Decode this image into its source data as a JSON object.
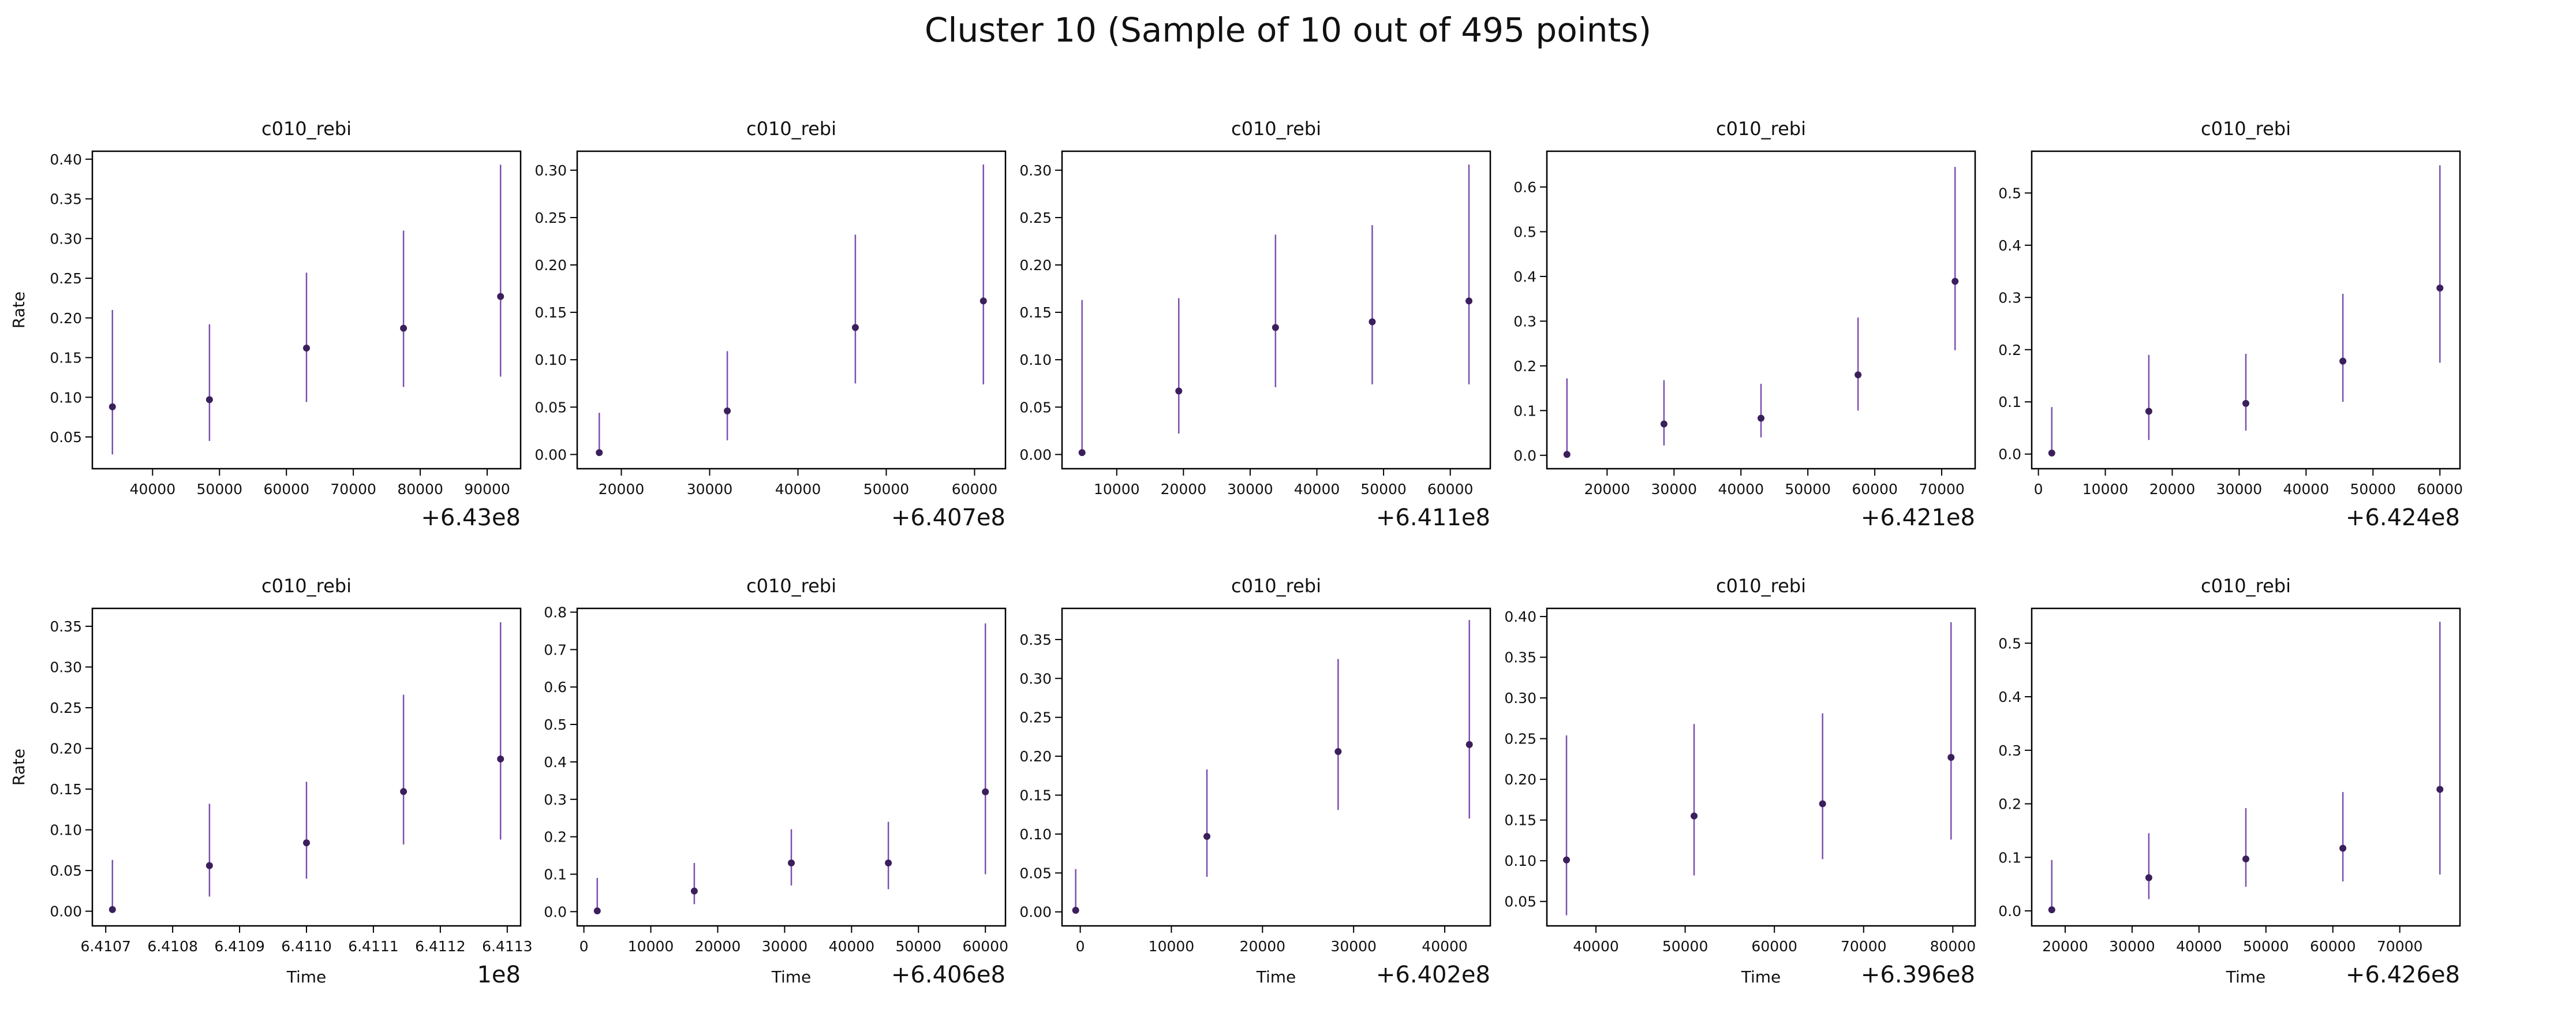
{
  "figure": {
    "title": "Cluster 10 (Sample of 10 out of 495 points)",
    "colors": {
      "marker": "#3b1f5c",
      "errorbar": "#7b4fb0",
      "axes": "#000000"
    }
  },
  "chart_data": [
    {
      "type": "scatter",
      "title": "c010_rebi",
      "ylabel": "Rate",
      "xlabel": "",
      "x_offset_label": "+6.43e8",
      "xlim": [
        31000,
        95000
      ],
      "ylim": [
        0.01,
        0.41
      ],
      "xticks": [
        40000,
        50000,
        60000,
        70000,
        80000,
        90000
      ],
      "xtick_labels": [
        "40000",
        "50000",
        "60000",
        "70000",
        "80000",
        "90000"
      ],
      "yticks": [
        0.05,
        0.1,
        0.15,
        0.2,
        0.25,
        0.3,
        0.35,
        0.4
      ],
      "ytick_labels": [
        "0.05",
        "0.10",
        "0.15",
        "0.20",
        "0.25",
        "0.30",
        "0.35",
        "0.40"
      ],
      "points": [
        {
          "x": 34000,
          "y": 0.088,
          "lo": 0.028,
          "hi": 0.21
        },
        {
          "x": 48500,
          "y": 0.097,
          "lo": 0.045,
          "hi": 0.192
        },
        {
          "x": 63000,
          "y": 0.162,
          "lo": 0.094,
          "hi": 0.257
        },
        {
          "x": 77500,
          "y": 0.187,
          "lo": 0.113,
          "hi": 0.31
        },
        {
          "x": 92000,
          "y": 0.227,
          "lo": 0.126,
          "hi": 0.393
        }
      ]
    },
    {
      "type": "scatter",
      "title": "c010_rebi",
      "ylabel": "",
      "xlabel": "",
      "x_offset_label": "+6.407e8",
      "xlim": [
        15000,
        63500
      ],
      "ylim": [
        -0.015,
        0.32
      ],
      "xticks": [
        20000,
        30000,
        40000,
        50000,
        60000
      ],
      "xtick_labels": [
        "20000",
        "30000",
        "40000",
        "50000",
        "60000"
      ],
      "yticks": [
        0,
        0.05,
        0.1,
        0.15,
        0.2,
        0.25,
        0.3
      ],
      "ytick_labels": [
        "0.00",
        "0.05",
        "0.10",
        "0.15",
        "0.20",
        "0.25",
        "0.30"
      ],
      "points": [
        {
          "x": 17500,
          "y": 0.002,
          "lo": 0.0,
          "hi": 0.044
        },
        {
          "x": 32000,
          "y": 0.046,
          "lo": 0.015,
          "hi": 0.109
        },
        {
          "x": 46500,
          "y": 0.134,
          "lo": 0.075,
          "hi": 0.232
        },
        {
          "x": 61000,
          "y": 0.162,
          "lo": 0.074,
          "hi": 0.306
        }
      ]
    },
    {
      "type": "scatter",
      "title": "c010_rebi",
      "ylabel": "",
      "xlabel": "",
      "x_offset_label": "+6.411e8",
      "xlim": [
        1800,
        66000
      ],
      "ylim": [
        -0.015,
        0.32
      ],
      "xticks": [
        10000,
        20000,
        30000,
        40000,
        50000,
        60000
      ],
      "xtick_labels": [
        "10000",
        "20000",
        "30000",
        "40000",
        "50000",
        "60000"
      ],
      "yticks": [
        0,
        0.05,
        0.1,
        0.15,
        0.2,
        0.25,
        0.3
      ],
      "ytick_labels": [
        "0.00",
        "0.05",
        "0.10",
        "0.15",
        "0.20",
        "0.25",
        "0.30"
      ],
      "points": [
        {
          "x": 4800,
          "y": 0.002,
          "lo": 0.0,
          "hi": 0.163
        },
        {
          "x": 19300,
          "y": 0.067,
          "lo": 0.022,
          "hi": 0.165
        },
        {
          "x": 33800,
          "y": 0.134,
          "lo": 0.071,
          "hi": 0.232
        },
        {
          "x": 48300,
          "y": 0.14,
          "lo": 0.074,
          "hi": 0.242
        },
        {
          "x": 62800,
          "y": 0.162,
          "lo": 0.074,
          "hi": 0.306
        }
      ]
    },
    {
      "type": "scatter",
      "title": "c010_rebi",
      "ylabel": "",
      "xlabel": "",
      "x_offset_label": "+6.421e8",
      "xlim": [
        11000,
        75000
      ],
      "ylim": [
        -0.03,
        0.68
      ],
      "xticks": [
        20000,
        30000,
        40000,
        50000,
        60000,
        70000
      ],
      "xtick_labels": [
        "20000",
        "30000",
        "40000",
        "50000",
        "60000",
        "70000"
      ],
      "yticks": [
        0,
        0.1,
        0.2,
        0.3,
        0.4,
        0.5,
        0.6
      ],
      "ytick_labels": [
        "0.0",
        "0.1",
        "0.2",
        "0.3",
        "0.4",
        "0.5",
        "0.6"
      ],
      "points": [
        {
          "x": 14000,
          "y": 0.002,
          "lo": 0.0,
          "hi": 0.172
        },
        {
          "x": 28500,
          "y": 0.07,
          "lo": 0.022,
          "hi": 0.168
        },
        {
          "x": 43000,
          "y": 0.083,
          "lo": 0.04,
          "hi": 0.16
        },
        {
          "x": 57500,
          "y": 0.18,
          "lo": 0.1,
          "hi": 0.308
        },
        {
          "x": 72000,
          "y": 0.389,
          "lo": 0.235,
          "hi": 0.645
        }
      ]
    },
    {
      "type": "scatter",
      "title": "c010_rebi",
      "ylabel": "",
      "xlabel": "",
      "x_offset_label": "+6.424e8",
      "xlim": [
        -1000,
        63000
      ],
      "ylim": [
        -0.028,
        0.58
      ],
      "xticks": [
        0,
        10000,
        20000,
        30000,
        40000,
        50000,
        60000
      ],
      "xtick_labels": [
        "0",
        "10000",
        "20000",
        "30000",
        "40000",
        "50000",
        "60000"
      ],
      "yticks": [
        0,
        0.1,
        0.2,
        0.3,
        0.4,
        0.5
      ],
      "ytick_labels": [
        "0.0",
        "0.1",
        "0.2",
        "0.3",
        "0.4",
        "0.5"
      ],
      "points": [
        {
          "x": 2000,
          "y": 0.002,
          "lo": 0.0,
          "hi": 0.09
        },
        {
          "x": 16500,
          "y": 0.082,
          "lo": 0.027,
          "hi": 0.19
        },
        {
          "x": 31000,
          "y": 0.097,
          "lo": 0.045,
          "hi": 0.192
        },
        {
          "x": 45500,
          "y": 0.178,
          "lo": 0.1,
          "hi": 0.307
        },
        {
          "x": 60000,
          "y": 0.318,
          "lo": 0.175,
          "hi": 0.553
        }
      ]
    },
    {
      "type": "scatter",
      "title": "c010_rebi",
      "ylabel": "Rate",
      "xlabel": "Time",
      "x_offset_label": "1e8",
      "xlim": [
        6.41068,
        6.41132
      ],
      "ylim": [
        -0.018,
        0.372
      ],
      "xticks": [
        6.4107,
        6.4108,
        6.4109,
        6.411,
        6.4111,
        6.4112,
        6.4113
      ],
      "xtick_labels": [
        "6.4107",
        "6.4108",
        "6.4109",
        "6.4110",
        "6.4111",
        "6.4112",
        "6.4113"
      ],
      "yticks": [
        0,
        0.05,
        0.1,
        0.15,
        0.2,
        0.25,
        0.3,
        0.35
      ],
      "ytick_labels": [
        "0.00",
        "0.05",
        "0.10",
        "0.15",
        "0.20",
        "0.25",
        "0.30",
        "0.35"
      ],
      "points": [
        {
          "x": 6.41071,
          "y": 0.002,
          "lo": 0.0,
          "hi": 0.063
        },
        {
          "x": 6.410855,
          "y": 0.056,
          "lo": 0.018,
          "hi": 0.132
        },
        {
          "x": 6.411,
          "y": 0.084,
          "lo": 0.04,
          "hi": 0.159
        },
        {
          "x": 6.411145,
          "y": 0.147,
          "lo": 0.082,
          "hi": 0.266
        },
        {
          "x": 6.41129,
          "y": 0.187,
          "lo": 0.088,
          "hi": 0.355
        }
      ]
    },
    {
      "type": "scatter",
      "title": "c010_rebi",
      "ylabel": "",
      "xlabel": "Time",
      "x_offset_label": "+6.406e8",
      "xlim": [
        -1000,
        63000
      ],
      "ylim": [
        -0.038,
        0.81
      ],
      "xticks": [
        0,
        10000,
        20000,
        30000,
        40000,
        50000,
        60000
      ],
      "xtick_labels": [
        "0",
        "10000",
        "20000",
        "30000",
        "40000",
        "50000",
        "60000"
      ],
      "yticks": [
        0,
        0.1,
        0.2,
        0.3,
        0.4,
        0.5,
        0.6,
        0.7,
        0.8
      ],
      "ytick_labels": [
        "0.0",
        "0.1",
        "0.2",
        "0.3",
        "0.4",
        "0.5",
        "0.6",
        "0.7",
        "0.8"
      ],
      "points": [
        {
          "x": 2000,
          "y": 0.002,
          "lo": 0.0,
          "hi": 0.09
        },
        {
          "x": 16500,
          "y": 0.055,
          "lo": 0.02,
          "hi": 0.13
        },
        {
          "x": 31000,
          "y": 0.13,
          "lo": 0.07,
          "hi": 0.22
        },
        {
          "x": 45500,
          "y": 0.13,
          "lo": 0.06,
          "hi": 0.24
        },
        {
          "x": 60000,
          "y": 0.32,
          "lo": 0.1,
          "hi": 0.77
        }
      ]
    },
    {
      "type": "scatter",
      "title": "c010_rebi",
      "ylabel": "",
      "xlabel": "Time",
      "x_offset_label": "+6.402e8",
      "xlim": [
        -2000,
        45000
      ],
      "ylim": [
        -0.018,
        0.39
      ],
      "xticks": [
        0,
        10000,
        20000,
        30000,
        40000
      ],
      "xtick_labels": [
        "0",
        "10000",
        "20000",
        "30000",
        "40000"
      ],
      "yticks": [
        0,
        0.05,
        0.1,
        0.15,
        0.2,
        0.25,
        0.3,
        0.35
      ],
      "ytick_labels": [
        "0.00",
        "0.05",
        "0.10",
        "0.15",
        "0.20",
        "0.25",
        "0.30",
        "0.35"
      ],
      "points": [
        {
          "x": -500,
          "y": 0.002,
          "lo": 0.0,
          "hi": 0.055
        },
        {
          "x": 13900,
          "y": 0.097,
          "lo": 0.045,
          "hi": 0.183
        },
        {
          "x": 28300,
          "y": 0.206,
          "lo": 0.131,
          "hi": 0.325
        },
        {
          "x": 42700,
          "y": 0.215,
          "lo": 0.12,
          "hi": 0.375
        }
      ]
    },
    {
      "type": "scatter",
      "title": "c010_rebi",
      "ylabel": "",
      "xlabel": "Time",
      "x_offset_label": "+6.396e8",
      "xlim": [
        34500,
        82500
      ],
      "ylim": [
        0.02,
        0.41
      ],
      "xticks": [
        40000,
        50000,
        60000,
        70000,
        80000
      ],
      "xtick_labels": [
        "40000",
        "50000",
        "60000",
        "70000",
        "80000"
      ],
      "yticks": [
        0.05,
        0.1,
        0.15,
        0.2,
        0.25,
        0.3,
        0.35,
        0.4
      ],
      "ytick_labels": [
        "0.05",
        "0.10",
        "0.15",
        "0.20",
        "0.25",
        "0.30",
        "0.35",
        "0.40"
      ],
      "points": [
        {
          "x": 36700,
          "y": 0.101,
          "lo": 0.033,
          "hi": 0.254
        },
        {
          "x": 51000,
          "y": 0.155,
          "lo": 0.082,
          "hi": 0.268
        },
        {
          "x": 65400,
          "y": 0.17,
          "lo": 0.102,
          "hi": 0.281
        },
        {
          "x": 79800,
          "y": 0.227,
          "lo": 0.126,
          "hi": 0.393
        }
      ]
    },
    {
      "type": "scatter",
      "title": "c010_rebi",
      "ylabel": "",
      "xlabel": "Time",
      "x_offset_label": "+6.426e8",
      "xlim": [
        15000,
        79000
      ],
      "ylim": [
        -0.028,
        0.565
      ],
      "xticks": [
        20000,
        30000,
        40000,
        50000,
        60000,
        70000
      ],
      "xtick_labels": [
        "20000",
        "30000",
        "40000",
        "50000",
        "60000",
        "70000"
      ],
      "yticks": [
        0,
        0.1,
        0.2,
        0.3,
        0.4,
        0.5
      ],
      "ytick_labels": [
        "0.0",
        "0.1",
        "0.2",
        "0.3",
        "0.4",
        "0.5"
      ],
      "points": [
        {
          "x": 18000,
          "y": 0.002,
          "lo": 0.0,
          "hi": 0.095
        },
        {
          "x": 32500,
          "y": 0.062,
          "lo": 0.022,
          "hi": 0.145
        },
        {
          "x": 47000,
          "y": 0.097,
          "lo": 0.045,
          "hi": 0.192
        },
        {
          "x": 61500,
          "y": 0.117,
          "lo": 0.055,
          "hi": 0.222
        },
        {
          "x": 76000,
          "y": 0.227,
          "lo": 0.068,
          "hi": 0.54
        }
      ]
    }
  ]
}
